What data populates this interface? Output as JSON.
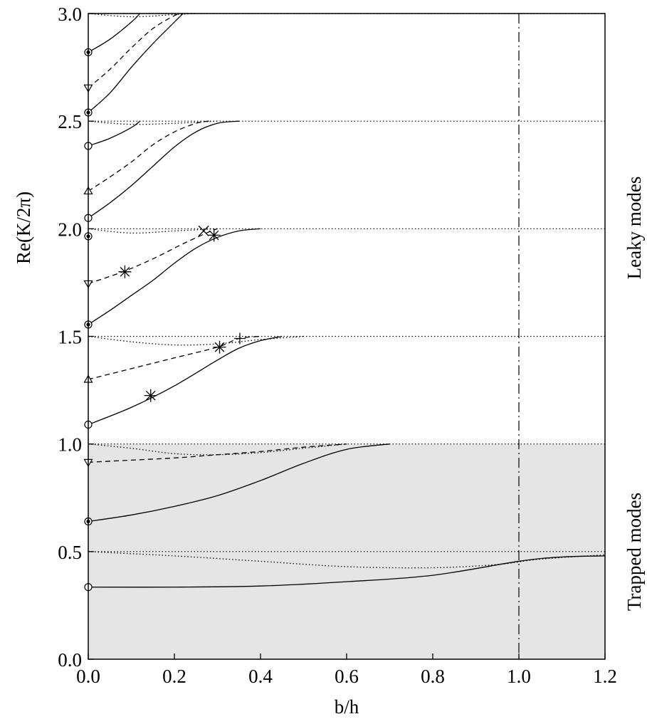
{
  "chart_data": {
    "type": "line",
    "title": "",
    "xlabel": "b/h",
    "ylabel": "Re(K/2π)",
    "xlim": [
      0.0,
      1.2
    ],
    "ylim": [
      0.0,
      3.0
    ],
    "x_ticks": [
      "0.0",
      "0.2",
      "0.4",
      "0.6",
      "0.8",
      "1.0",
      "1.2"
    ],
    "y_ticks": [
      "0.0",
      "0.5",
      "1.0",
      "1.5",
      "2.0",
      "2.5",
      "3.0"
    ],
    "grid": false,
    "shaded_region": {
      "label": "Trapped modes",
      "y_range": [
        0.0,
        1.0
      ],
      "color": "#e5e5e5"
    },
    "upper_region_label": "Leaky modes",
    "horizontal_reference_lines": [
      0.5,
      1.0,
      1.5,
      2.0,
      2.5,
      3.0
    ],
    "vertical_reference_line": {
      "x": 1.0,
      "style": "dash-dot"
    },
    "series": [
      {
        "style": "solid",
        "points": [
          [
            0.0,
            0.335
          ],
          [
            0.2,
            0.335
          ],
          [
            0.4,
            0.34
          ],
          [
            0.6,
            0.36
          ],
          [
            0.8,
            0.39
          ],
          [
            1.0,
            0.455
          ],
          [
            1.1,
            0.475
          ],
          [
            1.2,
            0.48
          ]
        ]
      },
      {
        "style": "dotted",
        "points": [
          [
            0.0,
            0.5
          ],
          [
            0.2,
            0.48
          ],
          [
            0.4,
            0.455
          ],
          [
            0.6,
            0.43
          ],
          [
            0.8,
            0.425
          ],
          [
            0.95,
            0.44
          ],
          [
            1.05,
            0.465
          ],
          [
            1.2,
            0.485
          ]
        ]
      },
      {
        "style": "solid",
        "points": [
          [
            0.0,
            0.64
          ],
          [
            0.1,
            0.67
          ],
          [
            0.2,
            0.71
          ],
          [
            0.3,
            0.76
          ],
          [
            0.4,
            0.83
          ],
          [
            0.5,
            0.91
          ],
          [
            0.6,
            0.975
          ],
          [
            0.7,
            1.0
          ]
        ]
      },
      {
        "style": "dashed",
        "points": [
          [
            0.0,
            0.915
          ],
          [
            0.1,
            0.925
          ],
          [
            0.2,
            0.935
          ],
          [
            0.3,
            0.95
          ],
          [
            0.4,
            0.965
          ],
          [
            0.5,
            0.985
          ],
          [
            0.6,
            1.0
          ]
        ]
      },
      {
        "style": "dotted",
        "points": [
          [
            0.0,
            1.0
          ],
          [
            0.1,
            0.98
          ],
          [
            0.2,
            0.955
          ],
          [
            0.3,
            0.95
          ],
          [
            0.4,
            0.96
          ],
          [
            0.5,
            0.98
          ],
          [
            0.6,
            1.0
          ]
        ]
      },
      {
        "style": "solid",
        "points": [
          [
            0.0,
            1.09
          ],
          [
            0.1,
            1.17
          ],
          [
            0.2,
            1.27
          ],
          [
            0.3,
            1.39
          ],
          [
            0.35,
            1.445
          ],
          [
            0.4,
            1.48
          ],
          [
            0.45,
            1.5
          ]
        ]
      },
      {
        "style": "dashed",
        "points": [
          [
            0.0,
            1.3
          ],
          [
            0.1,
            1.35
          ],
          [
            0.2,
            1.4
          ],
          [
            0.3,
            1.45
          ],
          [
            0.35,
            1.49
          ],
          [
            0.4,
            1.5
          ]
        ]
      },
      {
        "style": "dotted",
        "points": [
          [
            0.0,
            1.5
          ],
          [
            0.1,
            1.475
          ],
          [
            0.2,
            1.46
          ],
          [
            0.3,
            1.465
          ],
          [
            0.4,
            1.485
          ],
          [
            0.5,
            1.5
          ]
        ]
      },
      {
        "style": "solid",
        "points": [
          [
            0.0,
            1.555
          ],
          [
            0.05,
            1.62
          ],
          [
            0.1,
            1.69
          ],
          [
            0.15,
            1.76
          ],
          [
            0.2,
            1.84
          ],
          [
            0.25,
            1.91
          ],
          [
            0.3,
            1.96
          ],
          [
            0.35,
            1.99
          ],
          [
            0.4,
            2.0
          ]
        ]
      },
      {
        "style": "dashed",
        "points": [
          [
            0.0,
            1.745
          ],
          [
            0.08,
            1.8
          ],
          [
            0.15,
            1.86
          ],
          [
            0.22,
            1.93
          ],
          [
            0.28,
            1.985
          ],
          [
            0.3,
            2.0
          ]
        ]
      },
      {
        "style": "dotted",
        "points": [
          [
            0.0,
            2.0
          ],
          [
            0.1,
            1.98
          ],
          [
            0.2,
            1.99
          ],
          [
            0.3,
            2.0
          ]
        ]
      },
      {
        "style": "solid",
        "points": [
          [
            0.0,
            2.05
          ],
          [
            0.05,
            2.12
          ],
          [
            0.1,
            2.2
          ],
          [
            0.15,
            2.29
          ],
          [
            0.2,
            2.38
          ],
          [
            0.25,
            2.45
          ],
          [
            0.3,
            2.49
          ],
          [
            0.35,
            2.5
          ]
        ]
      },
      {
        "style": "dashed",
        "points": [
          [
            0.0,
            2.175
          ],
          [
            0.05,
            2.24
          ],
          [
            0.1,
            2.31
          ],
          [
            0.15,
            2.39
          ],
          [
            0.2,
            2.45
          ],
          [
            0.25,
            2.49
          ],
          [
            0.28,
            2.5
          ]
        ]
      },
      {
        "style": "solid",
        "points": [
          [
            0.0,
            2.385
          ],
          [
            0.05,
            2.42
          ],
          [
            0.1,
            2.47
          ],
          [
            0.12,
            2.5
          ]
        ]
      },
      {
        "style": "dotted",
        "points": [
          [
            0.0,
            2.5
          ],
          [
            0.1,
            2.485
          ],
          [
            0.2,
            2.49
          ],
          [
            0.3,
            2.5
          ]
        ]
      },
      {
        "style": "solid",
        "points": [
          [
            0.0,
            2.54
          ],
          [
            0.05,
            2.63
          ],
          [
            0.1,
            2.75
          ],
          [
            0.15,
            2.86
          ],
          [
            0.2,
            2.96
          ],
          [
            0.22,
            3.0
          ]
        ]
      },
      {
        "style": "dashed",
        "points": [
          [
            0.0,
            2.655
          ],
          [
            0.05,
            2.74
          ],
          [
            0.1,
            2.84
          ],
          [
            0.15,
            2.93
          ],
          [
            0.2,
            2.99
          ],
          [
            0.22,
            3.0
          ]
        ]
      },
      {
        "style": "solid",
        "points": [
          [
            0.0,
            2.82
          ],
          [
            0.05,
            2.88
          ],
          [
            0.1,
            2.96
          ],
          [
            0.12,
            3.0
          ]
        ]
      },
      {
        "style": "dotted",
        "points": [
          [
            0.0,
            3.0
          ],
          [
            0.1,
            2.985
          ],
          [
            0.2,
            2.995
          ],
          [
            0.25,
            3.0
          ]
        ]
      }
    ],
    "markers": [
      {
        "shape": "circle",
        "x": 0.0,
        "y": 0.335
      },
      {
        "shape": "filled-circle",
        "x": 0.0,
        "y": 0.64
      },
      {
        "shape": "down-triangle",
        "x": 0.0,
        "y": 0.915
      },
      {
        "shape": "circle",
        "x": 0.0,
        "y": 1.09
      },
      {
        "shape": "up-triangle",
        "x": 0.0,
        "y": 1.3
      },
      {
        "shape": "filled-circle",
        "x": 0.0,
        "y": 1.555
      },
      {
        "shape": "down-triangle",
        "x": 0.0,
        "y": 1.745
      },
      {
        "shape": "filled-circle",
        "x": 0.0,
        "y": 1.965
      },
      {
        "shape": "circle",
        "x": 0.0,
        "y": 2.05
      },
      {
        "shape": "up-triangle",
        "x": 0.0,
        "y": 2.175
      },
      {
        "shape": "circle",
        "x": 0.0,
        "y": 2.385
      },
      {
        "shape": "filled-circle",
        "x": 0.0,
        "y": 2.54
      },
      {
        "shape": "down-triangle",
        "x": 0.0,
        "y": 2.655
      },
      {
        "shape": "filled-circle",
        "x": 0.0,
        "y": 2.82
      },
      {
        "shape": "asterisk",
        "x": 0.145,
        "y": 1.225
      },
      {
        "shape": "asterisk",
        "x": 0.305,
        "y": 1.45
      },
      {
        "shape": "plus",
        "x": 0.352,
        "y": 1.49
      },
      {
        "shape": "asterisk",
        "x": 0.085,
        "y": 1.8
      },
      {
        "shape": "cross",
        "x": 0.268,
        "y": 1.99
      },
      {
        "shape": "asterisk",
        "x": 0.292,
        "y": 1.97
      }
    ]
  }
}
